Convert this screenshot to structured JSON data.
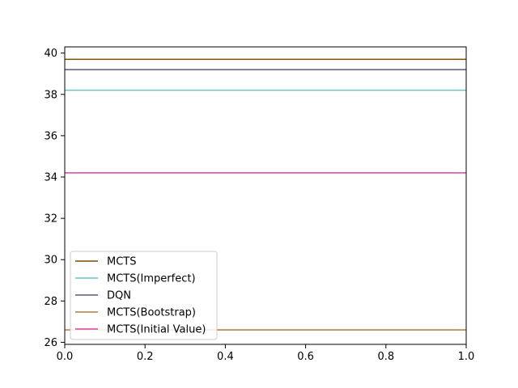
{
  "chart_data": {
    "type": "line",
    "title": "",
    "xlabel": "",
    "ylabel": "",
    "xlim": [
      0.0,
      1.0
    ],
    "ylim": [
      25.9,
      40.3
    ],
    "x_ticks": [
      "0.0",
      "0.2",
      "0.4",
      "0.6",
      "0.8",
      "1.0"
    ],
    "y_ticks": [
      "26",
      "28",
      "30",
      "32",
      "34",
      "36",
      "38",
      "40"
    ],
    "grid": false,
    "legend_position": "lower-left",
    "series": [
      {
        "name": "MCTS",
        "x": [
          0.0,
          1.0
        ],
        "values": [
          39.7,
          39.7
        ],
        "color": "#7a4a00"
      },
      {
        "name": "MCTS(Imperfect)",
        "x": [
          0.0,
          1.0
        ],
        "values": [
          38.2,
          38.2
        ],
        "color": "#6cc5c0"
      },
      {
        "name": "DQN",
        "x": [
          0.0,
          1.0
        ],
        "values": [
          39.2,
          39.2
        ],
        "color": "#5e5478"
      },
      {
        "name": "MCTS(Bootstrap)",
        "x": [
          0.0,
          1.0
        ],
        "values": [
          26.6,
          26.6
        ],
        "color": "#b07a3c"
      },
      {
        "name": "MCTS(Initial Value)",
        "x": [
          0.0,
          1.0
        ],
        "values": [
          34.2,
          34.2
        ],
        "color": "#e0409e"
      }
    ]
  }
}
